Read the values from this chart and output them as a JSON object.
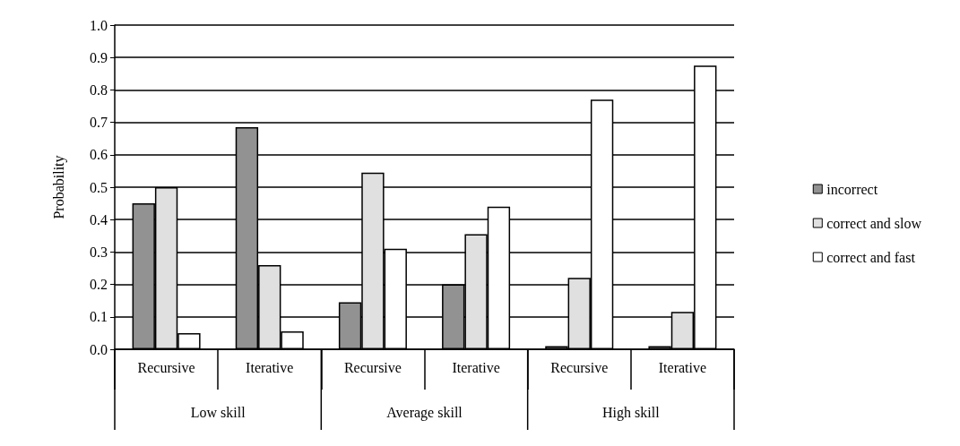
{
  "chart_data": {
    "type": "bar",
    "ylabel": "Probability",
    "categories": [
      "Recursive",
      "Iterative",
      "Recursive",
      "Iterative",
      "Recursive",
      "Iterative"
    ],
    "series": [
      {
        "name": "incorrect",
        "color": "#929292",
        "values": [
          0.45,
          0.685,
          0.145,
          0.2,
          0.01,
          0.01
        ]
      },
      {
        "name": "correct and slow",
        "color": "#e0e0e0",
        "values": [
          0.5,
          0.26,
          0.545,
          0.355,
          0.22,
          0.115
        ]
      },
      {
        "name": "correct and fast",
        "color": "#ffffff",
        "values": [
          0.05,
          0.055,
          0.31,
          0.44,
          0.77,
          0.875
        ]
      }
    ],
    "annotations": [
      "Low skill",
      "Average skill",
      "High skill"
    ],
    "ylim": [
      0,
      1
    ],
    "yticks": [
      {
        "value": 0,
        "label": "0.0"
      },
      {
        "value": 0.1,
        "label": "0.1"
      },
      {
        "value": 0.2,
        "label": "0.2"
      },
      {
        "value": 0.3,
        "label": "0.3"
      },
      {
        "value": 0.4,
        "label": "0.4"
      },
      {
        "value": 0.5,
        "label": "0.5"
      },
      {
        "value": 0.6,
        "label": "0.6"
      },
      {
        "value": 0.7,
        "label": "0.7"
      },
      {
        "value": 0.8,
        "label": "0.8"
      },
      {
        "value": 0.9,
        "label": "0.9"
      },
      {
        "value": 1,
        "label": "1.0"
      }
    ],
    "grid": "y",
    "legend": "right"
  }
}
